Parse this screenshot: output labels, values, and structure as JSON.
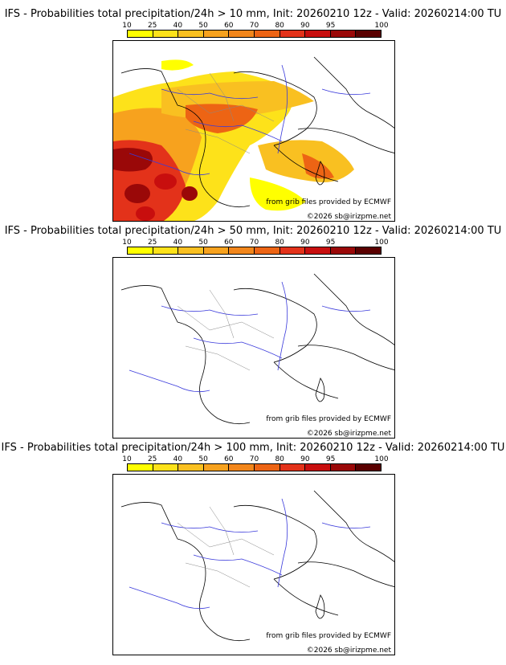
{
  "colorbar": {
    "labels": [
      "10",
      "25",
      "40",
      "50",
      "60",
      "70",
      "80",
      "90",
      "95",
      "100"
    ],
    "colors": [
      "#ffff00",
      "#fde21a",
      "#f9c021",
      "#f7a21e",
      "#f2861b",
      "#ed6414",
      "#e3321a",
      "#c80e0e",
      "#9a0808",
      "#5a0000"
    ]
  },
  "panels": [
    {
      "title": "IFS - Probabilities total precipitation/24h > 10 mm, Init: 20260210 12z - Valid: 20260214:00 TU",
      "source": "from grib files provided by ECMWF",
      "copyright": "©2026 sb@irizpme.net",
      "has_precip": true
    },
    {
      "title": "IFS - Probabilities total precipitation/24h > 50 mm, Init: 20260210 12z - Valid: 20260214:00 TU",
      "source": "from grib files provided by ECMWF",
      "copyright": "©2026 sb@irizpme.net",
      "has_precip": false
    },
    {
      "title": "IFS - Probabilities total precipitation/24h > 100 mm, Init: 20260210 12z - Valid: 20260214:00 TU",
      "source": "from grib files provided by ECMWF",
      "copyright": "©2026 sb@irizpme.net",
      "has_precip": false
    }
  ]
}
